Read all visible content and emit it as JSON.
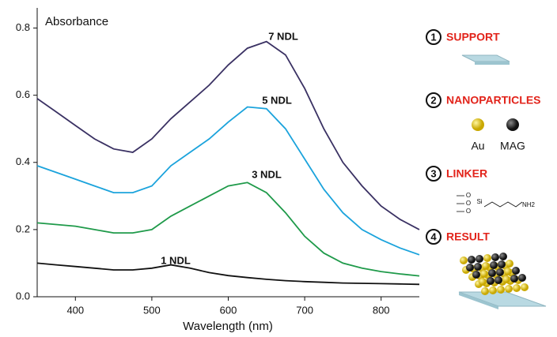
{
  "chart_data": {
    "type": "line",
    "x_label": "Wavelength (nm)",
    "y_label": "Absorbance",
    "x": [
      350,
      375,
      400,
      425,
      450,
      475,
      500,
      525,
      550,
      575,
      600,
      625,
      650,
      675,
      700,
      725,
      750,
      775,
      800,
      825,
      850
    ],
    "series": [
      {
        "name": "7 NDL",
        "color": "#3a3163",
        "values": [
          0.59,
          0.55,
          0.51,
          0.47,
          0.44,
          0.43,
          0.47,
          0.53,
          0.58,
          0.63,
          0.69,
          0.74,
          0.76,
          0.72,
          0.62,
          0.5,
          0.4,
          0.33,
          0.27,
          0.23,
          0.2
        ]
      },
      {
        "name": "5 NDL",
        "color": "#1ba3dc",
        "values": [
          0.39,
          0.37,
          0.35,
          0.33,
          0.31,
          0.31,
          0.33,
          0.39,
          0.43,
          0.47,
          0.52,
          0.565,
          0.56,
          0.5,
          0.41,
          0.32,
          0.25,
          0.2,
          0.17,
          0.145,
          0.125
        ]
      },
      {
        "name": "3 NDL",
        "color": "#1f9a4a",
        "values": [
          0.22,
          0.215,
          0.21,
          0.2,
          0.19,
          0.19,
          0.2,
          0.24,
          0.27,
          0.3,
          0.33,
          0.34,
          0.31,
          0.25,
          0.18,
          0.13,
          0.1,
          0.085,
          0.075,
          0.068,
          0.062
        ]
      },
      {
        "name": "1 NDL",
        "color": "#111111",
        "values": [
          0.1,
          0.095,
          0.09,
          0.085,
          0.08,
          0.08,
          0.085,
          0.095,
          0.085,
          0.072,
          0.063,
          0.057,
          0.052,
          0.048,
          0.045,
          0.043,
          0.041,
          0.04,
          0.039,
          0.038,
          0.037
        ]
      }
    ],
    "xlim": [
      350,
      850
    ],
    "xticks": [
      400,
      500,
      600,
      700,
      800
    ],
    "ylim": [
      0,
      0.86
    ],
    "yticks": [
      {
        "value": 0,
        "label": "0.0"
      },
      0.2,
      0.4,
      0.6,
      0.8
    ]
  },
  "steps": [
    {
      "number": "1",
      "label": "SUPPORT"
    },
    {
      "number": "2",
      "label": "NANOPARTICLES"
    },
    {
      "number": "3",
      "label": "LINKER"
    },
    {
      "number": "4",
      "label": "RESULT"
    }
  ],
  "particles": [
    "Au",
    "MAG"
  ],
  "linker_formula": [
    "O",
    "O",
    "O",
    "Si",
    "NH2"
  ]
}
